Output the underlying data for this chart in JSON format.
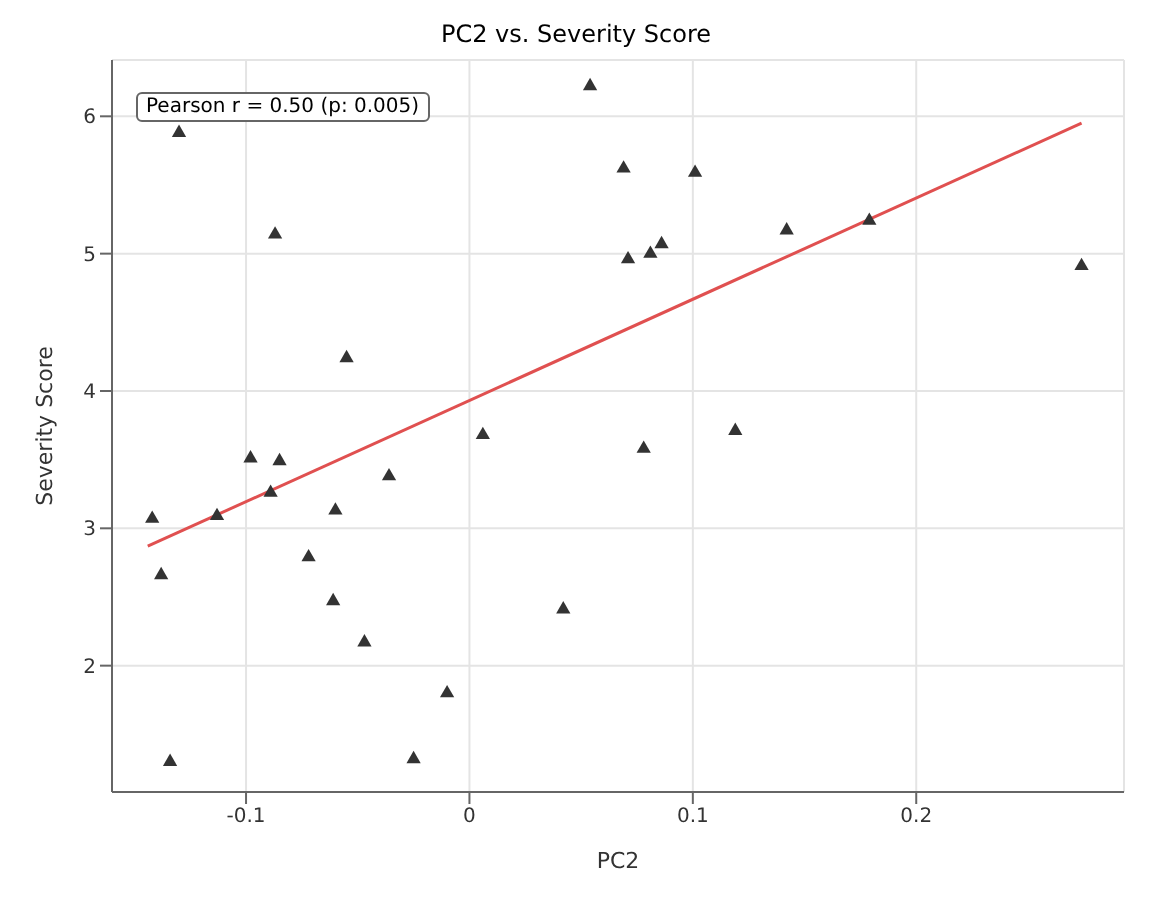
{
  "chart_data": {
    "type": "scatter",
    "title": "PC2 vs. Severity Score",
    "xlabel": "PC2",
    "ylabel": "Severity Score",
    "annotations": [
      "Pearson r = 0.50 (p: 0.005)"
    ],
    "xlim": [
      -0.16,
      0.293
    ],
    "xticks": [
      -0.1,
      0.0,
      0.1,
      0.2
    ],
    "ylim": [
      1.08,
      6.41
    ],
    "yticks": [
      2,
      3,
      4,
      5,
      6
    ],
    "grid": true,
    "series": [
      {
        "color": "#333333",
        "marker": "triangle",
        "x": [
          -0.13,
          -0.087,
          -0.055,
          0.054,
          0.069,
          0.101,
          0.071,
          0.081,
          0.086,
          0.142,
          0.179,
          0.274,
          0.078,
          0.119,
          0.006,
          -0.036,
          -0.098,
          -0.085,
          -0.089,
          -0.06,
          -0.113,
          -0.142,
          -0.138,
          -0.072,
          -0.061,
          -0.047,
          0.042,
          -0.01,
          -0.025,
          -0.134
        ],
        "values": [
          5.88,
          5.14,
          4.24,
          6.22,
          5.62,
          5.59,
          4.96,
          5.0,
          5.07,
          5.17,
          5.24,
          4.91,
          3.58,
          3.71,
          3.68,
          3.38,
          3.51,
          3.49,
          3.26,
          3.13,
          3.09,
          3.07,
          2.66,
          2.79,
          2.47,
          2.17,
          2.41,
          1.8,
          1.32,
          1.3
        ]
      },
      {
        "type": "line",
        "color": "#e05050",
        "x": [
          -0.144,
          0.274
        ],
        "values": [
          2.87,
          5.95
        ]
      }
    ]
  }
}
